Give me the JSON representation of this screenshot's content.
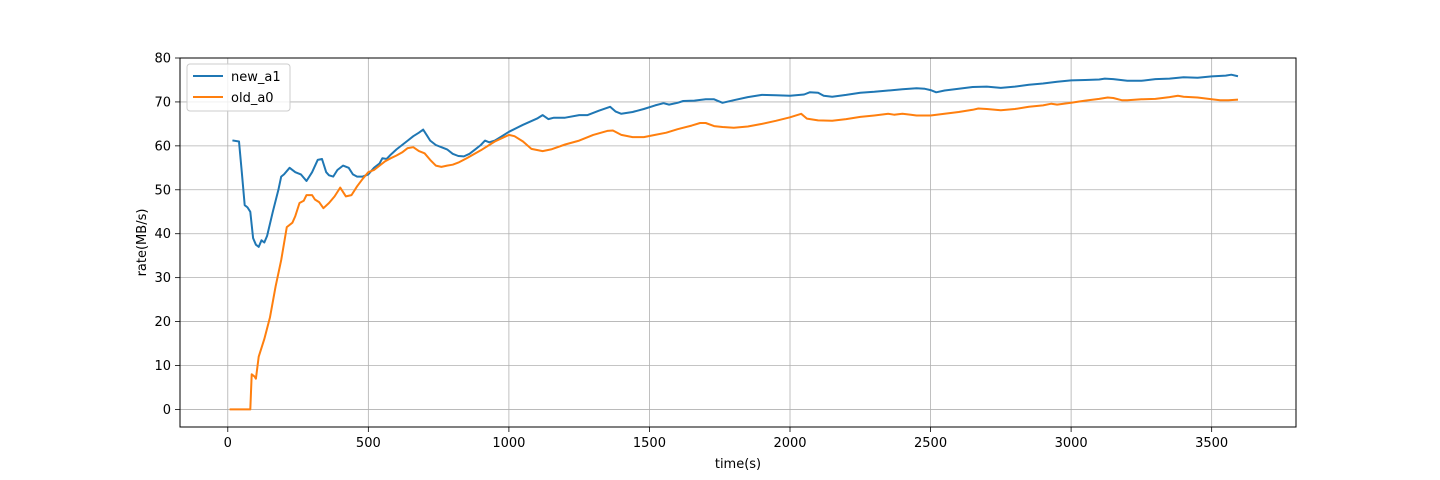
{
  "chart_data": {
    "type": "line",
    "title": "",
    "xlabel": "time(s)",
    "ylabel": "rate(MB/s)",
    "xlim": [
      -170,
      3800
    ],
    "ylim": [
      -4,
      80
    ],
    "xticks": [
      0,
      500,
      1000,
      1500,
      2000,
      2500,
      3000,
      3500
    ],
    "yticks": [
      0,
      10,
      20,
      30,
      40,
      50,
      60,
      70,
      80
    ],
    "grid": true,
    "legend_position": "top-left",
    "series": [
      {
        "name": "new_a1",
        "color": "#1f77b4",
        "points": [
          [
            20,
            61.2
          ],
          [
            40,
            61
          ],
          [
            50,
            54
          ],
          [
            60,
            46.5
          ],
          [
            70,
            46
          ],
          [
            80,
            45
          ],
          [
            90,
            39
          ],
          [
            100,
            37.5
          ],
          [
            110,
            37
          ],
          [
            120,
            38.5
          ],
          [
            130,
            38
          ],
          [
            140,
            39.5
          ],
          [
            160,
            45
          ],
          [
            180,
            50
          ],
          [
            190,
            53
          ],
          [
            200,
            53.5
          ],
          [
            220,
            55
          ],
          [
            240,
            54
          ],
          [
            260,
            53.5
          ],
          [
            280,
            52
          ],
          [
            300,
            54
          ],
          [
            320,
            56.8
          ],
          [
            335,
            57
          ],
          [
            350,
            54
          ],
          [
            360,
            53.3
          ],
          [
            375,
            53
          ],
          [
            390,
            54.5
          ],
          [
            410,
            55.5
          ],
          [
            430,
            55
          ],
          [
            445,
            53.5
          ],
          [
            460,
            53
          ],
          [
            480,
            53
          ],
          [
            500,
            53.5
          ],
          [
            520,
            55
          ],
          [
            540,
            56
          ],
          [
            550,
            57.2
          ],
          [
            565,
            57
          ],
          [
            580,
            58
          ],
          [
            600,
            59.2
          ],
          [
            620,
            60.2
          ],
          [
            640,
            61.2
          ],
          [
            660,
            62.2
          ],
          [
            680,
            63
          ],
          [
            695,
            63.7
          ],
          [
            710,
            62.2
          ],
          [
            720,
            61.2
          ],
          [
            740,
            60.2
          ],
          [
            760,
            59.7
          ],
          [
            780,
            59.2
          ],
          [
            800,
            58.2
          ],
          [
            820,
            57.7
          ],
          [
            840,
            57.6
          ],
          [
            860,
            58.2
          ],
          [
            880,
            59.2
          ],
          [
            900,
            60.2
          ],
          [
            915,
            61.2
          ],
          [
            930,
            60.8
          ],
          [
            950,
            61.2
          ],
          [
            970,
            62
          ],
          [
            1000,
            63.2
          ],
          [
            1050,
            64.8
          ],
          [
            1100,
            66.2
          ],
          [
            1120,
            67
          ],
          [
            1140,
            66.1
          ],
          [
            1160,
            66.4
          ],
          [
            1200,
            66.4
          ],
          [
            1250,
            67
          ],
          [
            1280,
            67
          ],
          [
            1320,
            68
          ],
          [
            1360,
            68.9
          ],
          [
            1380,
            67.8
          ],
          [
            1400,
            67.3
          ],
          [
            1440,
            67.7
          ],
          [
            1480,
            68.4
          ],
          [
            1520,
            69.2
          ],
          [
            1550,
            69.7
          ],
          [
            1570,
            69.4
          ],
          [
            1600,
            69.8
          ],
          [
            1620,
            70.2
          ],
          [
            1660,
            70.3
          ],
          [
            1700,
            70.6
          ],
          [
            1730,
            70.6
          ],
          [
            1760,
            69.8
          ],
          [
            1800,
            70.4
          ],
          [
            1850,
            71.1
          ],
          [
            1900,
            71.6
          ],
          [
            1950,
            71.5
          ],
          [
            2000,
            71.4
          ],
          [
            2050,
            71.7
          ],
          [
            2070,
            72.2
          ],
          [
            2100,
            72.1
          ],
          [
            2120,
            71.4
          ],
          [
            2150,
            71.2
          ],
          [
            2200,
            71.6
          ],
          [
            2250,
            72.1
          ],
          [
            2300,
            72.3
          ],
          [
            2350,
            72.6
          ],
          [
            2400,
            72.9
          ],
          [
            2450,
            73.1
          ],
          [
            2480,
            73
          ],
          [
            2500,
            72.7
          ],
          [
            2520,
            72.2
          ],
          [
            2550,
            72.6
          ],
          [
            2600,
            73
          ],
          [
            2650,
            73.4
          ],
          [
            2700,
            73.5
          ],
          [
            2750,
            73.2
          ],
          [
            2800,
            73.5
          ],
          [
            2850,
            73.9
          ],
          [
            2900,
            74.2
          ],
          [
            2950,
            74.6
          ],
          [
            3000,
            74.9
          ],
          [
            3050,
            75
          ],
          [
            3100,
            75.1
          ],
          [
            3120,
            75.3
          ],
          [
            3150,
            75.2
          ],
          [
            3200,
            74.8
          ],
          [
            3250,
            74.8
          ],
          [
            3300,
            75.2
          ],
          [
            3350,
            75.3
          ],
          [
            3400,
            75.6
          ],
          [
            3450,
            75.5
          ],
          [
            3500,
            75.8
          ],
          [
            3550,
            76
          ],
          [
            3570,
            76.2
          ],
          [
            3590,
            75.9
          ]
        ]
      },
      {
        "name": "old_a0",
        "color": "#ff7f0e",
        "points": [
          [
            10,
            0
          ],
          [
            80,
            0
          ],
          [
            85,
            8
          ],
          [
            95,
            7.5
          ],
          [
            100,
            7
          ],
          [
            110,
            12
          ],
          [
            130,
            16
          ],
          [
            150,
            21
          ],
          [
            170,
            28
          ],
          [
            190,
            34
          ],
          [
            210,
            41.5
          ],
          [
            230,
            42.5
          ],
          [
            240,
            44
          ],
          [
            255,
            47
          ],
          [
            270,
            47.5
          ],
          [
            280,
            48.8
          ],
          [
            300,
            48.8
          ],
          [
            310,
            47.8
          ],
          [
            325,
            47.2
          ],
          [
            340,
            45.8
          ],
          [
            360,
            47
          ],
          [
            380,
            48.5
          ],
          [
            400,
            50.5
          ],
          [
            420,
            48.5
          ],
          [
            440,
            48.8
          ],
          [
            460,
            50.8
          ],
          [
            480,
            52.5
          ],
          [
            500,
            54
          ],
          [
            520,
            54.5
          ],
          [
            540,
            55.5
          ],
          [
            560,
            56.5
          ],
          [
            580,
            57.2
          ],
          [
            600,
            57.8
          ],
          [
            620,
            58.5
          ],
          [
            640,
            59.5
          ],
          [
            660,
            59.7
          ],
          [
            680,
            58.8
          ],
          [
            700,
            58.3
          ],
          [
            720,
            56.8
          ],
          [
            740,
            55.5
          ],
          [
            760,
            55.2
          ],
          [
            780,
            55.5
          ],
          [
            800,
            55.7
          ],
          [
            820,
            56.2
          ],
          [
            850,
            57.2
          ],
          [
            900,
            59
          ],
          [
            950,
            61
          ],
          [
            1000,
            62.5
          ],
          [
            1020,
            62.2
          ],
          [
            1050,
            61
          ],
          [
            1080,
            59.3
          ],
          [
            1120,
            58.8
          ],
          [
            1150,
            59.2
          ],
          [
            1200,
            60.3
          ],
          [
            1250,
            61.2
          ],
          [
            1300,
            62.5
          ],
          [
            1350,
            63.4
          ],
          [
            1370,
            63.5
          ],
          [
            1400,
            62.5
          ],
          [
            1440,
            62
          ],
          [
            1480,
            62
          ],
          [
            1520,
            62.5
          ],
          [
            1560,
            63
          ],
          [
            1600,
            63.8
          ],
          [
            1650,
            64.6
          ],
          [
            1680,
            65.2
          ],
          [
            1700,
            65.2
          ],
          [
            1730,
            64.5
          ],
          [
            1760,
            64.3
          ],
          [
            1800,
            64.1
          ],
          [
            1850,
            64.4
          ],
          [
            1900,
            65
          ],
          [
            1950,
            65.7
          ],
          [
            2000,
            66.5
          ],
          [
            2040,
            67.3
          ],
          [
            2060,
            66.2
          ],
          [
            2080,
            66
          ],
          [
            2100,
            65.8
          ],
          [
            2150,
            65.7
          ],
          [
            2200,
            66.1
          ],
          [
            2250,
            66.6
          ],
          [
            2300,
            66.9
          ],
          [
            2350,
            67.3
          ],
          [
            2370,
            67.1
          ],
          [
            2400,
            67.3
          ],
          [
            2430,
            67.1
          ],
          [
            2450,
            66.9
          ],
          [
            2500,
            66.9
          ],
          [
            2550,
            67.3
          ],
          [
            2600,
            67.7
          ],
          [
            2650,
            68.2
          ],
          [
            2670,
            68.5
          ],
          [
            2700,
            68.4
          ],
          [
            2750,
            68.1
          ],
          [
            2800,
            68.4
          ],
          [
            2850,
            68.9
          ],
          [
            2900,
            69.2
          ],
          [
            2930,
            69.6
          ],
          [
            2950,
            69.4
          ],
          [
            3000,
            69.8
          ],
          [
            3050,
            70.3
          ],
          [
            3100,
            70.7
          ],
          [
            3130,
            71
          ],
          [
            3150,
            70.9
          ],
          [
            3180,
            70.4
          ],
          [
            3200,
            70.4
          ],
          [
            3250,
            70.6
          ],
          [
            3300,
            70.7
          ],
          [
            3350,
            71.1
          ],
          [
            3380,
            71.4
          ],
          [
            3400,
            71.2
          ],
          [
            3450,
            71
          ],
          [
            3500,
            70.6
          ],
          [
            3530,
            70.4
          ],
          [
            3560,
            70.4
          ],
          [
            3590,
            70.5
          ]
        ]
      }
    ]
  }
}
